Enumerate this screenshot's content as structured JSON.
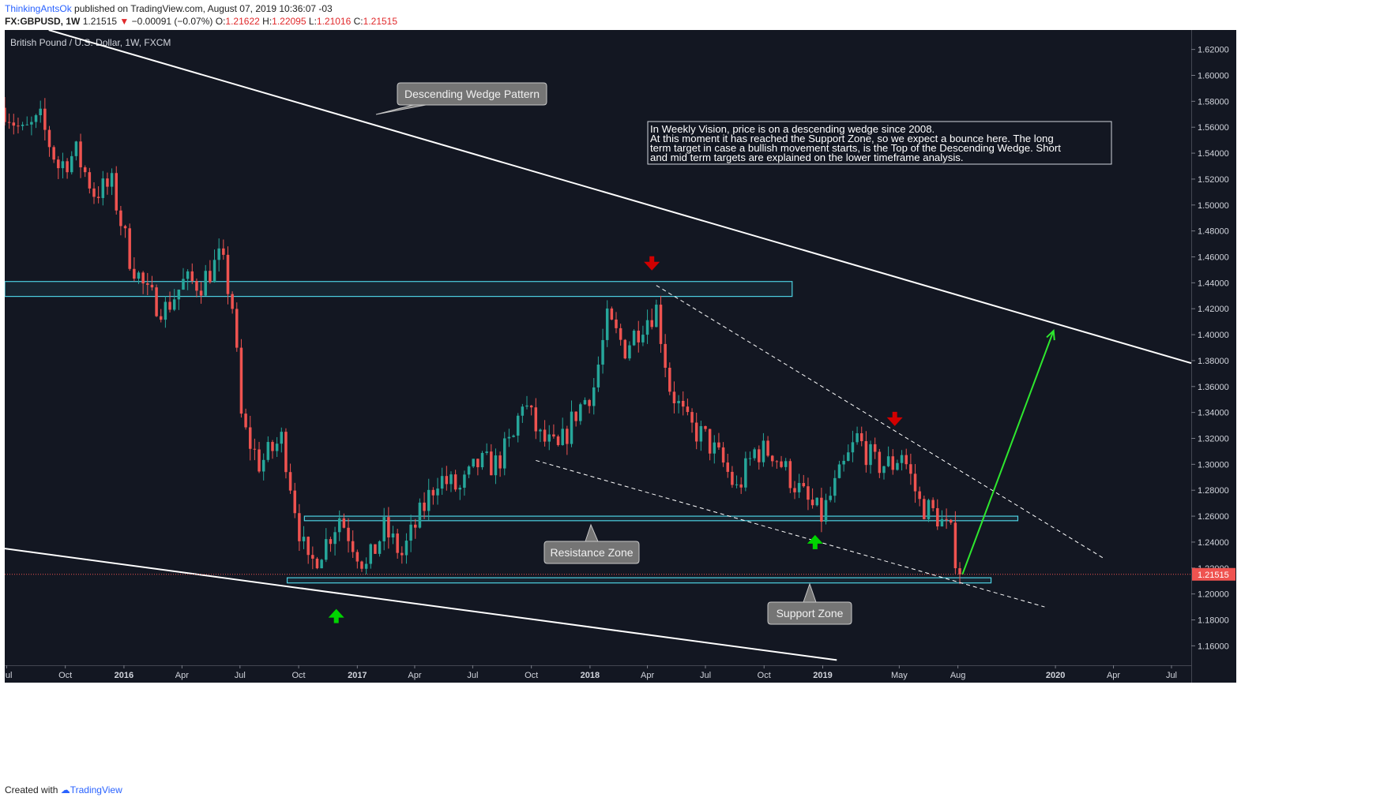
{
  "header": {
    "user": "ThinkingAntsOk",
    "published": "published on TradingView.com, August 07, 2019 10:36:07 -03",
    "symbol": "FX:GBPUSD, 1W",
    "last": "1.21515",
    "change_arrow": "▼",
    "change": "−0.00091 (−0.07%)",
    "o_label": "O:",
    "o_value": "1.21622",
    "h_label": "H:",
    "h_value": "1.22095",
    "l_label": "L:",
    "l_value": "1.21016",
    "c_label": "C:",
    "c_value": "1.21515"
  },
  "footer": {
    "created_with": "Created with",
    "brand": "TradingView"
  },
  "chart_data": {
    "type": "candlestick",
    "title": "British Pound / U.S. Dollar, 1W, FXCM",
    "ylim": [
      1.145,
      1.635
    ],
    "y_ticks": [
      "1.62000",
      "1.60000",
      "1.58000",
      "1.56000",
      "1.54000",
      "1.52000",
      "1.50000",
      "1.48000",
      "1.46000",
      "1.44000",
      "1.42000",
      "1.40000",
      "1.38000",
      "1.36000",
      "1.34000",
      "1.32000",
      "1.30000",
      "1.28000",
      "1.26000",
      "1.24000",
      "1.22000",
      "1.20000",
      "1.18000",
      "1.16000"
    ],
    "x_ticks": [
      {
        "label": "Jul",
        "date": "2015-07-01",
        "bold": false
      },
      {
        "label": "Oct",
        "date": "2015-10-01",
        "bold": false
      },
      {
        "label": "2016",
        "date": "2016-01-01",
        "bold": true
      },
      {
        "label": "Apr",
        "date": "2016-04-01",
        "bold": false
      },
      {
        "label": "Jul",
        "date": "2016-07-01",
        "bold": false
      },
      {
        "label": "Oct",
        "date": "2016-10-01",
        "bold": false
      },
      {
        "label": "2017",
        "date": "2017-01-01",
        "bold": true
      },
      {
        "label": "Apr",
        "date": "2017-04-01",
        "bold": false
      },
      {
        "label": "Jul",
        "date": "2017-07-01",
        "bold": false
      },
      {
        "label": "Oct",
        "date": "2017-10-01",
        "bold": false
      },
      {
        "label": "2018",
        "date": "2018-01-01",
        "bold": true
      },
      {
        "label": "Apr",
        "date": "2018-04-01",
        "bold": false
      },
      {
        "label": "Jul",
        "date": "2018-07-01",
        "bold": false
      },
      {
        "label": "Oct",
        "date": "2018-10-01",
        "bold": false
      },
      {
        "label": "2019",
        "date": "2019-01-01",
        "bold": true
      },
      {
        "label": "May",
        "date": "2019-05-01",
        "bold": false
      },
      {
        "label": "Aug",
        "date": "2019-08-01",
        "bold": false
      },
      {
        "label": "2020",
        "date": "2020-01-01",
        "bold": true
      },
      {
        "label": "Apr",
        "date": "2020-04-01",
        "bold": false
      },
      {
        "label": "Jul",
        "date": "2020-07-01",
        "bold": false
      }
    ],
    "x_range": [
      "2015-06-28",
      "2020-08-01"
    ],
    "last_price_label": "1.21515",
    "last_price": 1.21515,
    "anchors": [
      [
        "2015-06-28",
        1.575
      ],
      [
        "2015-07-26",
        1.555
      ],
      [
        "2015-08-23",
        1.565
      ],
      [
        "2015-09-20",
        1.53
      ],
      [
        "2015-10-18",
        1.54
      ],
      [
        "2015-11-15",
        1.51
      ],
      [
        "2015-12-13",
        1.515
      ],
      [
        "2016-01-10",
        1.46
      ],
      [
        "2016-02-07",
        1.43
      ],
      [
        "2016-03-06",
        1.42
      ],
      [
        "2016-04-03",
        1.44
      ],
      [
        "2016-05-01",
        1.44
      ],
      [
        "2016-06-01",
        1.46
      ],
      [
        "2016-06-20",
        1.42
      ],
      [
        "2016-07-04",
        1.33
      ],
      [
        "2016-08-01",
        1.3
      ],
      [
        "2016-09-05",
        1.32
      ],
      [
        "2016-10-02",
        1.25
      ],
      [
        "2016-10-16",
        1.22
      ],
      [
        "2016-11-13",
        1.24
      ],
      [
        "2016-12-04",
        1.26
      ],
      [
        "2017-01-15",
        1.22
      ],
      [
        "2017-02-12",
        1.25
      ],
      [
        "2017-03-12",
        1.23
      ],
      [
        "2017-04-09",
        1.26
      ],
      [
        "2017-05-07",
        1.29
      ],
      [
        "2017-06-11",
        1.28
      ],
      [
        "2017-07-09",
        1.3
      ],
      [
        "2017-08-06",
        1.3
      ],
      [
        "2017-09-03",
        1.32
      ],
      [
        "2017-09-17",
        1.35
      ],
      [
        "2017-10-15",
        1.32
      ],
      [
        "2017-11-12",
        1.31
      ],
      [
        "2017-12-10",
        1.34
      ],
      [
        "2018-01-07",
        1.36
      ],
      [
        "2018-01-28",
        1.41
      ],
      [
        "2018-02-25",
        1.39
      ],
      [
        "2018-03-25",
        1.41
      ],
      [
        "2018-04-15",
        1.42
      ],
      [
        "2018-05-06",
        1.36
      ],
      [
        "2018-06-03",
        1.33
      ],
      [
        "2018-07-01",
        1.32
      ],
      [
        "2018-07-29",
        1.3
      ],
      [
        "2018-08-19",
        1.28
      ],
      [
        "2018-09-16",
        1.31
      ],
      [
        "2018-10-14",
        1.31
      ],
      [
        "2018-11-11",
        1.29
      ],
      [
        "2018-12-09",
        1.27
      ],
      [
        "2018-12-30",
        1.26
      ],
      [
        "2019-01-27",
        1.29
      ],
      [
        "2019-02-24",
        1.32
      ],
      [
        "2019-03-24",
        1.3
      ],
      [
        "2019-04-21",
        1.3
      ],
      [
        "2019-05-05",
        1.31
      ],
      [
        "2019-06-02",
        1.27
      ],
      [
        "2019-06-30",
        1.26
      ],
      [
        "2019-07-21",
        1.245
      ],
      [
        "2019-08-04",
        1.215
      ]
    ],
    "zones": [
      {
        "name": "top-resistance",
        "from": "2015-06-28",
        "to": "2018-11-14",
        "low": 1.4295,
        "high": 1.441
      },
      {
        "name": "resistance-zone",
        "from": "2016-10-10",
        "to": "2019-11-03",
        "low": 1.2565,
        "high": 1.26
      },
      {
        "name": "support-zone",
        "from": "2016-09-13",
        "to": "2019-09-22",
        "low": 1.2085,
        "high": 1.2125
      }
    ],
    "lines": [
      {
        "name": "wedge-top",
        "from": [
          "2015-09-05",
          1.635
        ],
        "to": [
          "2020-08-01",
          1.378
        ],
        "style": "solid"
      },
      {
        "name": "wedge-bottom",
        "from": [
          "2015-06-28",
          1.235
        ],
        "to": [
          "2019-01-23",
          1.149
        ],
        "style": "solid"
      },
      {
        "name": "channel-top",
        "from": [
          "2018-04-15",
          1.438
        ],
        "to": [
          "2020-03-15",
          1.228
        ],
        "style": "dashed"
      },
      {
        "name": "channel-bottom",
        "from": [
          "2017-10-08",
          1.303
        ],
        "to": [
          "2019-12-15",
          1.19
        ],
        "style": "dashed"
      },
      {
        "name": "projection",
        "from": [
          "2019-08-08",
          1.215
        ],
        "to": [
          "2019-12-29",
          1.403
        ],
        "style": "arrow"
      }
    ],
    "markers": [
      {
        "type": "down",
        "date": "2018-04-08",
        "price": 1.455,
        "color": "#d10000"
      },
      {
        "type": "down",
        "date": "2019-04-24",
        "price": 1.335,
        "color": "#d10000"
      },
      {
        "type": "up",
        "date": "2016-11-29",
        "price": 1.183,
        "color": "#00d400"
      },
      {
        "type": "up",
        "date": "2018-12-20",
        "price": 1.24,
        "color": "#00d400"
      }
    ],
    "annotations": {
      "wedge_label": "Descending Wedge Pattern",
      "resistance_label": "Resistance Zone",
      "support_label": "Support Zone",
      "note_lines": [
        "In Weekly Vision, price is on a descending wedge since 2008.",
        "At this moment it has reached the Support Zone, so we expect a bounce here. The long",
        "term target in case a bullish movement starts, is the Top of the Descending Wedge. Short",
        "and mid term targets are explained on the lower timeframe analysis."
      ]
    },
    "colors": {
      "background": "#131722",
      "up": "#26a69a",
      "down": "#ef5350",
      "zone": "#4dd0e1",
      "wedge": "#ffffff",
      "projection": "#2ee82e",
      "last_price_bg": "#ef5350",
      "label_bg": "#757575"
    },
    "legend": "top-left",
    "grid": false
  }
}
